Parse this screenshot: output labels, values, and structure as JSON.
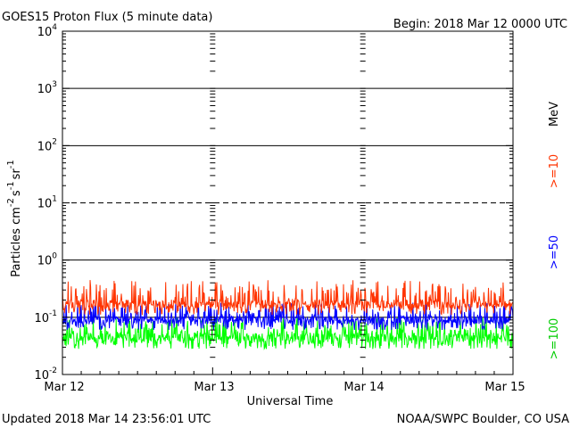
{
  "chart_data": {
    "type": "line",
    "title": "GOES15 Proton Flux (5 minute data)",
    "begin_label": "Begin: 2018 Mar 12 0000 UTC",
    "xlabel": "Universal Time",
    "ylabel_base": "Particles cm",
    "ylabel_parts": [
      {
        "base": "Particles cm",
        "sup": "-2"
      },
      {
        "base": "s",
        "sup": "-1"
      },
      {
        "base": "sr",
        "sup": "-1"
      }
    ],
    "x_ticks": [
      "Mar 12",
      "Mar 13",
      "Mar 14",
      "Mar 15"
    ],
    "xlim_days": [
      0,
      3
    ],
    "y_scale": "log",
    "ylim": [
      0.01,
      10000
    ],
    "y_ticks": [
      {
        "base": "10",
        "exp": "-2"
      },
      {
        "base": "10",
        "exp": "-1"
      },
      {
        "base": "10",
        "exp": "0"
      },
      {
        "base": "10",
        "exp": "1"
      },
      {
        "base": "10",
        "exp": "2"
      },
      {
        "base": "10",
        "exp": "3"
      },
      {
        "base": "10",
        "exp": "4"
      }
    ],
    "threshold_lines": [
      {
        "value": 0.1,
        "style": "solid"
      },
      {
        "value": 1,
        "style": "solid"
      },
      {
        "value": 10,
        "style": "dashed"
      },
      {
        "value": 100,
        "style": "solid"
      },
      {
        "value": 1000,
        "style": "solid"
      }
    ],
    "series": [
      {
        "name": ">=10",
        "color": "#ff3300",
        "typical": 0.17,
        "low": 0.11,
        "high": 0.45
      },
      {
        "name": ">=50",
        "color": "#0000ff",
        "typical": 0.09,
        "low": 0.06,
        "high": 0.18
      },
      {
        "name": ">=100",
        "color": "#00ff00",
        "typical": 0.045,
        "low": 0.028,
        "high": 0.1
      }
    ],
    "legend_unit": "MeV",
    "legend_placement": "right"
  },
  "footer": {
    "updated": "Updated 2018 Mar 14 23:56:01 UTC",
    "source": "NOAA/SWPC Boulder, CO USA"
  }
}
